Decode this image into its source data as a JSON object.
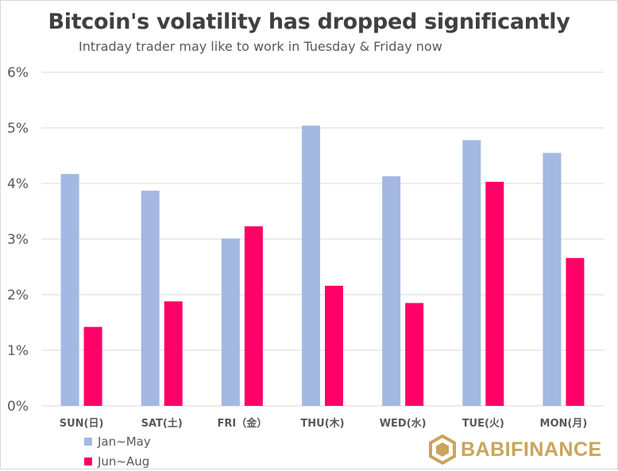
{
  "title": "Bitcoin's volatility has dropped significantly",
  "subtitle": "Intraday trader may like to work in Tuesday & Friday now",
  "brand": "BABIFINANCE",
  "colors": {
    "series1": "#a4b8e1",
    "series2": "#ff0066",
    "grid": "#d9d9d9",
    "axis_text": "#595959",
    "brand": "#c9a45a"
  },
  "chart_data": {
    "type": "bar",
    "categories": [
      "SUN(日)",
      "SAT(土)",
      "FRI（金）",
      "THU(木)",
      "WED(水)",
      "TUE(火)",
      "MON(月)"
    ],
    "series": [
      {
        "name": "Jan~May",
        "values": [
          4.17,
          3.87,
          3.01,
          5.04,
          4.13,
          4.78,
          4.55
        ]
      },
      {
        "name": "Jun~Aug",
        "values": [
          1.42,
          1.88,
          3.23,
          2.16,
          1.85,
          4.03,
          2.66
        ]
      }
    ],
    "yticks": [
      "0%",
      "1%",
      "2%",
      "3%",
      "4%",
      "5%",
      "6%"
    ],
    "ylim": [
      0,
      6
    ],
    "grid": true,
    "legend": "bottom-left"
  }
}
